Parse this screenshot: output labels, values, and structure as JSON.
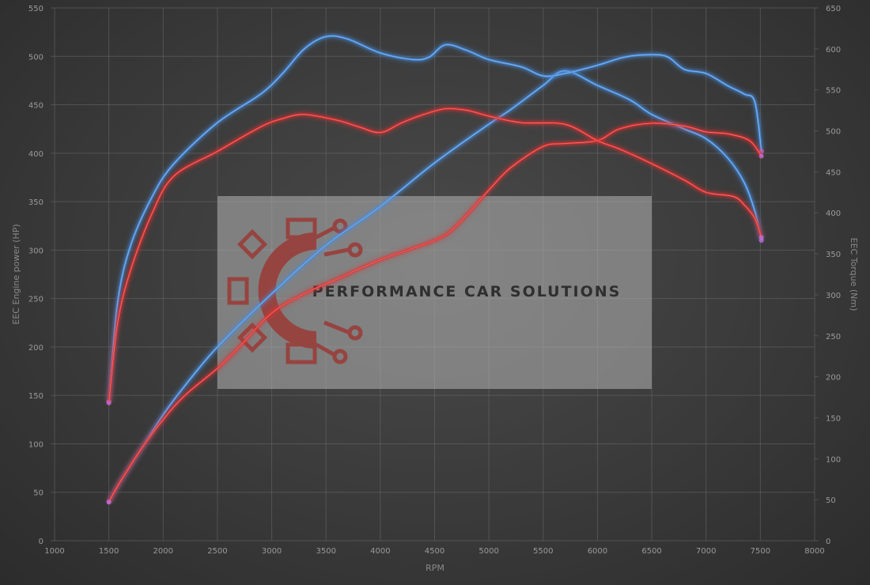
{
  "chart_data": {
    "type": "line",
    "xlabel": "RPM",
    "ylabel_left": "EEC Engine power (HP)",
    "ylabel_right": "EEC Torque (Nm)",
    "xlim": [
      1000,
      8000
    ],
    "ylim_left": [
      0,
      550
    ],
    "ylim_right": [
      0,
      650
    ],
    "x_ticks": [
      1000,
      1500,
      2000,
      2500,
      3000,
      3500,
      4000,
      4500,
      5000,
      5500,
      6000,
      6500,
      7000,
      7500,
      8000
    ],
    "y_ticks_left": [
      0,
      50,
      100,
      150,
      200,
      250,
      300,
      350,
      400,
      450,
      500,
      550
    ],
    "y_ticks_right": [
      0,
      50,
      100,
      150,
      200,
      250,
      300,
      350,
      400,
      450,
      500,
      550,
      600,
      650
    ],
    "grid": true,
    "series": [
      {
        "color": "#4a8fe0",
        "axis": "left",
        "points": [
          [
            1500,
            40
          ],
          [
            1600,
            60
          ],
          [
            1800,
            95
          ],
          [
            2000,
            130
          ],
          [
            2200,
            160
          ],
          [
            2500,
            200
          ],
          [
            3000,
            255
          ],
          [
            3500,
            305
          ],
          [
            4000,
            345
          ],
          [
            4500,
            390
          ],
          [
            5000,
            430
          ],
          [
            5200,
            445
          ],
          [
            5500,
            470
          ],
          [
            5700,
            485
          ],
          [
            6000,
            470
          ],
          [
            6300,
            455
          ],
          [
            6500,
            440
          ],
          [
            6800,
            425
          ],
          [
            7000,
            415
          ],
          [
            7200,
            395
          ],
          [
            7350,
            370
          ],
          [
            7450,
            340
          ],
          [
            7510,
            310
          ]
        ]
      },
      {
        "color": "#4a8fe0",
        "axis": "right",
        "points": [
          [
            1500,
            170
          ],
          [
            1580,
            290
          ],
          [
            1700,
            360
          ],
          [
            1900,
            420
          ],
          [
            2100,
            460
          ],
          [
            2500,
            510
          ],
          [
            2900,
            545
          ],
          [
            3100,
            570
          ],
          [
            3300,
            600
          ],
          [
            3500,
            615
          ],
          [
            3700,
            612
          ],
          [
            4000,
            595
          ],
          [
            4300,
            587
          ],
          [
            4450,
            590
          ],
          [
            4600,
            605
          ],
          [
            4800,
            598
          ],
          [
            5000,
            587
          ],
          [
            5300,
            578
          ],
          [
            5500,
            567
          ],
          [
            5700,
            570
          ],
          [
            6000,
            580
          ],
          [
            6250,
            590
          ],
          [
            6500,
            593
          ],
          [
            6650,
            590
          ],
          [
            6800,
            575
          ],
          [
            7000,
            570
          ],
          [
            7200,
            555
          ],
          [
            7350,
            545
          ],
          [
            7450,
            535
          ],
          [
            7510,
            475
          ]
        ]
      },
      {
        "color": "#e03232",
        "axis": "left",
        "points": [
          [
            1500,
            40
          ],
          [
            1600,
            60
          ],
          [
            1800,
            95
          ],
          [
            2000,
            125
          ],
          [
            2200,
            150
          ],
          [
            2500,
            178
          ],
          [
            2700,
            200
          ],
          [
            3000,
            235
          ],
          [
            3300,
            255
          ],
          [
            3600,
            270
          ],
          [
            4000,
            290
          ],
          [
            4500,
            310
          ],
          [
            4700,
            325
          ],
          [
            5000,
            362
          ],
          [
            5200,
            385
          ],
          [
            5500,
            407
          ],
          [
            5700,
            410
          ],
          [
            6000,
            413
          ],
          [
            6200,
            425
          ],
          [
            6500,
            431
          ],
          [
            6800,
            428
          ],
          [
            7000,
            422
          ],
          [
            7200,
            420
          ],
          [
            7400,
            413
          ],
          [
            7510,
            397
          ]
        ]
      },
      {
        "color": "#e03232",
        "axis": "right",
        "points": [
          [
            1500,
            168
          ],
          [
            1580,
            265
          ],
          [
            1700,
            330
          ],
          [
            1900,
            400
          ],
          [
            2100,
            445
          ],
          [
            2500,
            475
          ],
          [
            2900,
            505
          ],
          [
            3100,
            515
          ],
          [
            3300,
            520
          ],
          [
            3600,
            513
          ],
          [
            3800,
            505
          ],
          [
            4000,
            498
          ],
          [
            4200,
            510
          ],
          [
            4400,
            520
          ],
          [
            4600,
            527
          ],
          [
            4800,
            525
          ],
          [
            5000,
            518
          ],
          [
            5300,
            510
          ],
          [
            5700,
            508
          ],
          [
            6000,
            488
          ],
          [
            6200,
            478
          ],
          [
            6500,
            460
          ],
          [
            6800,
            440
          ],
          [
            7000,
            425
          ],
          [
            7250,
            420
          ],
          [
            7350,
            410
          ],
          [
            7450,
            393
          ],
          [
            7510,
            370
          ]
        ]
      }
    ]
  },
  "watermark": {
    "text": "PERFORMANCE CAR SOLUTIONS"
  }
}
